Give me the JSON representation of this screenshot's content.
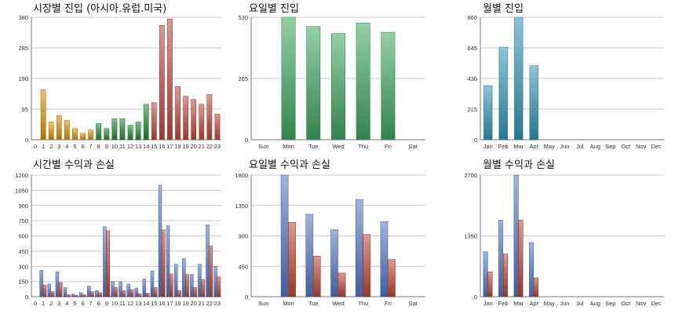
{
  "colors": {
    "orange": "#d98e04",
    "green": "#1e8a2e",
    "red": "#c0453a",
    "blue": "#4f74c4",
    "profit_red": "#c2452f",
    "weekday_green": "#3ea55f",
    "month_teal": "#2f95b5",
    "grid": "#c8c8c8",
    "axis": "#777777"
  },
  "charts": [
    {
      "title": "시장별 진입 (아시아.유럽.미국)",
      "chart_data": {
        "type": "bar",
        "categories": [
          "0",
          "1",
          "2",
          "3",
          "4",
          "5",
          "6",
          "7",
          "8",
          "9",
          "10",
          "11",
          "12",
          "13",
          "14",
          "15",
          "16",
          "17",
          "18",
          "19",
          "20",
          "21",
          "22",
          "23"
        ],
        "series": [
          {
            "values": [
              0,
              155,
              55,
              75,
              60,
              35,
              20,
              30,
              50,
              35,
              65,
              65,
              45,
              55,
              110,
              115,
              355,
              375,
              165,
              135,
              125,
              110,
              140,
              80
            ]
          }
        ],
        "bar_colors": [
          "orange",
          "orange",
          "orange",
          "orange",
          "orange",
          "orange",
          "orange",
          "orange",
          "green",
          "green",
          "green",
          "green",
          "green",
          "green",
          "green",
          "red",
          "red",
          "red",
          "red",
          "red",
          "red",
          "red",
          "red",
          "red"
        ],
        "yticks": [
          "380",
          "285",
          "190",
          "95",
          "0"
        ],
        "ylim": [
          0,
          380
        ]
      }
    },
    {
      "title": "요일별 진입",
      "chart_data": {
        "type": "bar",
        "categories": [
          "Sun",
          "Mon",
          "Tue",
          "Wed",
          "Thu",
          "Fri",
          "Sat"
        ],
        "series": [
          {
            "values": [
              0,
              530,
              490,
              460,
              505,
              465,
              0
            ]
          }
        ],
        "bar_colors": [
          "weekday_green",
          "weekday_green",
          "weekday_green",
          "weekday_green",
          "weekday_green",
          "weekday_green",
          "weekday_green"
        ],
        "yticks": [
          "530",
          "265",
          "0"
        ],
        "ylim": [
          0,
          530
        ]
      }
    },
    {
      "title": "월별 진입",
      "chart_data": {
        "type": "bar",
        "categories": [
          "Jan",
          "Feb",
          "Mar",
          "Apr",
          "May",
          "Jun",
          "Jul",
          "Aug",
          "Sep",
          "Oct",
          "Nov",
          "Dec"
        ],
        "series": [
          {
            "values": [
              380,
              650,
              860,
              520,
              0,
              0,
              0,
              0,
              0,
              0,
              0,
              0
            ]
          }
        ],
        "bar_colors": [
          "month_teal",
          "month_teal",
          "month_teal",
          "month_teal",
          "month_teal",
          "month_teal",
          "month_teal",
          "month_teal",
          "month_teal",
          "month_teal",
          "month_teal",
          "month_teal"
        ],
        "yticks": [
          "860",
          "645",
          "430",
          "215",
          "0"
        ],
        "ylim": [
          0,
          860
        ]
      }
    },
    {
      "title": "시간별 수익과 손실",
      "chart_data": {
        "type": "bar",
        "categories": [
          "0",
          "1",
          "2",
          "3",
          "4",
          "5",
          "6",
          "7",
          "8",
          "9",
          "10",
          "11",
          "12",
          "13",
          "14",
          "15",
          "16",
          "17",
          "18",
          "19",
          "20",
          "21",
          "22",
          "23"
        ],
        "series": [
          {
            "values": [
              0,
              260,
              125,
              245,
              90,
              25,
              40,
              105,
              60,
              690,
              150,
              145,
              125,
              85,
              175,
              255,
              1100,
              700,
              320,
              375,
              220,
              320,
              710,
              300
            ]
          },
          {
            "values": [
              0,
              115,
              50,
              140,
              20,
              15,
              20,
              50,
              40,
              650,
              90,
              60,
              70,
              30,
              35,
              90,
              660,
              225,
              60,
              220,
              90,
              170,
              500,
              195
            ]
          }
        ],
        "series_colors": [
          "blue",
          "profit_red"
        ],
        "yticks": [
          "1200",
          "1050",
          "900",
          "750",
          "600",
          "450",
          "300",
          "150",
          "0"
        ],
        "ylim": [
          0,
          1200
        ]
      }
    },
    {
      "title": "요일별 수익과 손실",
      "chart_data": {
        "type": "bar",
        "categories": [
          "Sun",
          "Mon",
          "Tue",
          "Wed",
          "Thu",
          "Fri",
          "Sat"
        ],
        "series": [
          {
            "values": [
              0,
              1800,
              1220,
              990,
              1440,
              1110,
              0
            ]
          },
          {
            "values": [
              0,
              1100,
              600,
              350,
              920,
              550,
              0
            ]
          }
        ],
        "series_colors": [
          "blue",
          "profit_red"
        ],
        "yticks": [
          "1800",
          "1350",
          "900",
          "450",
          "0"
        ],
        "ylim": [
          0,
          1800
        ]
      }
    },
    {
      "title": "월별 수익과 손실",
      "chart_data": {
        "type": "bar",
        "categories": [
          "Jan",
          "Feb",
          "Mar",
          "Apr",
          "May",
          "Jun",
          "Jul",
          "Aug",
          "Sep",
          "Oct",
          "Nov",
          "Dec"
        ],
        "series": [
          {
            "values": [
              1000,
              1700,
              2700,
              1200,
              0,
              0,
              0,
              0,
              0,
              0,
              0,
              0
            ]
          },
          {
            "values": [
              550,
              950,
              1700,
              420,
              0,
              0,
              0,
              0,
              0,
              0,
              0,
              0
            ]
          }
        ],
        "series_colors": [
          "blue",
          "profit_red"
        ],
        "yticks": [
          "2700",
          "1350",
          "0"
        ],
        "ylim": [
          0,
          2700
        ]
      }
    }
  ]
}
